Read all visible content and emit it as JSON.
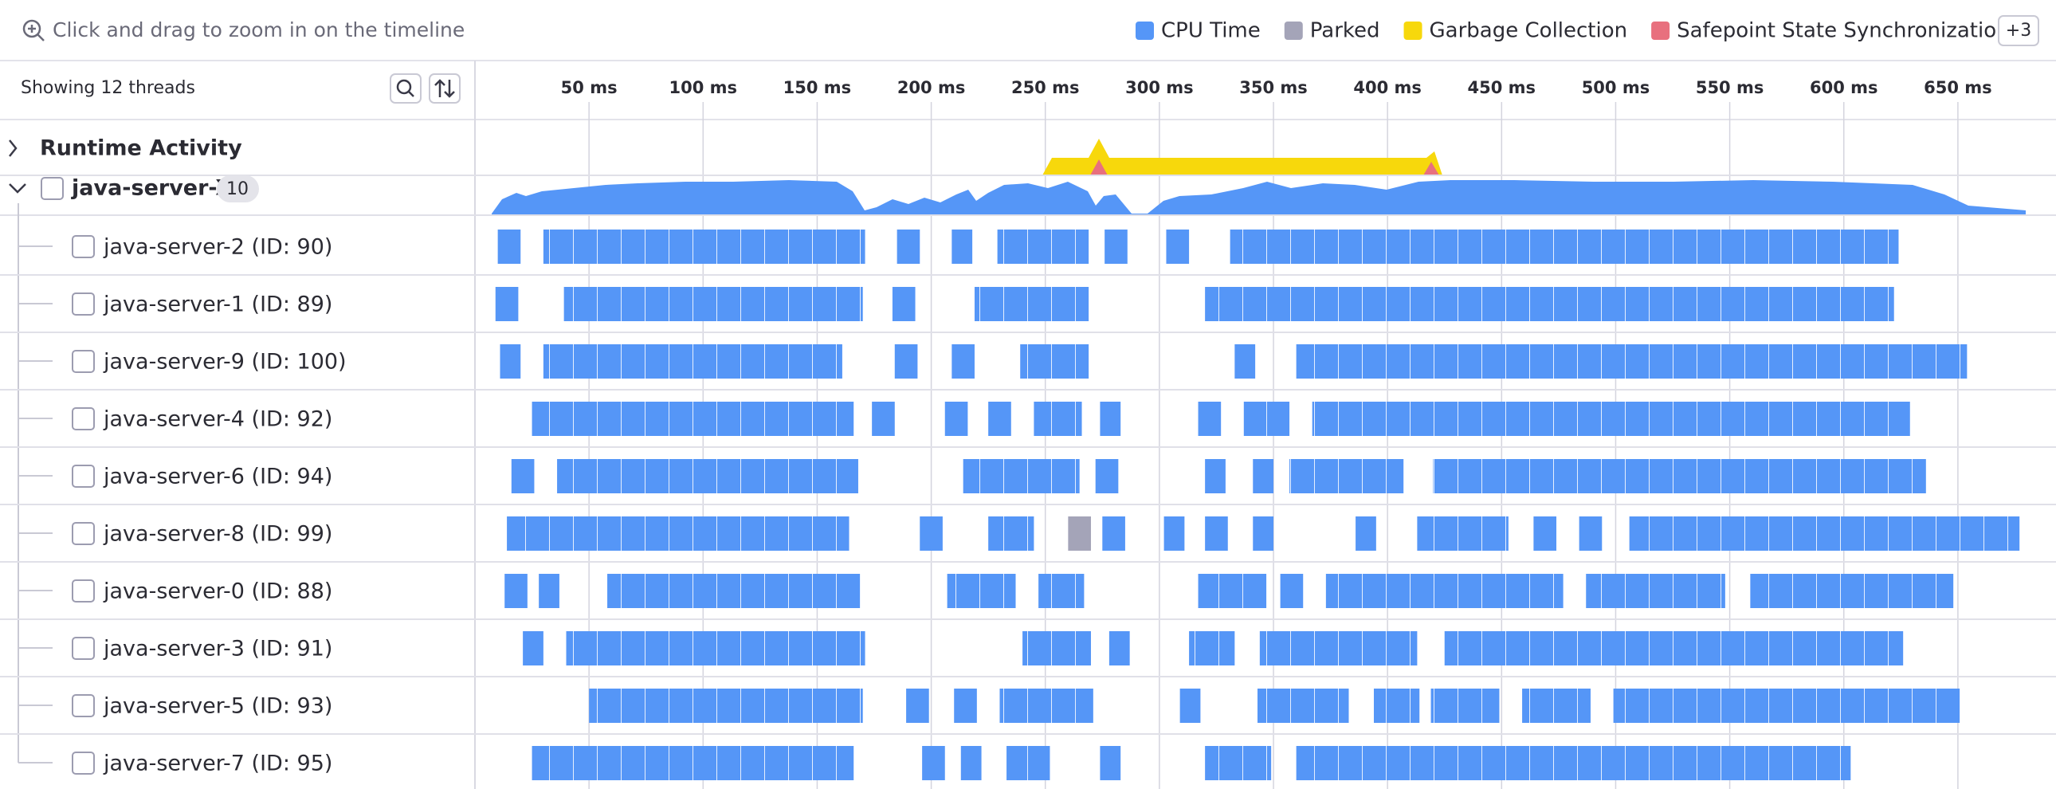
{
  "toolbar": {
    "hint": "Click and drag to zoom in on the timeline",
    "legend": [
      {
        "name": "CPU Time",
        "color": "#5596f7"
      },
      {
        "name": "Parked",
        "color": "#a4a4b8"
      },
      {
        "name": "Garbage Collection",
        "color": "#f7d80c"
      },
      {
        "name": "Safepoint State Synchronization",
        "color": "#e8707e"
      }
    ],
    "more": "+3"
  },
  "header": {
    "thread_count": "Showing 12 threads"
  },
  "timeline": {
    "xlim": [
      0,
      693
    ],
    "ticks": [
      {
        "value": 50,
        "label": "50 ms"
      },
      {
        "value": 100,
        "label": "100 ms"
      },
      {
        "value": 150,
        "label": "150 ms"
      },
      {
        "value": 200,
        "label": "200 ms"
      },
      {
        "value": 250,
        "label": "250 ms"
      },
      {
        "value": 300,
        "label": "300 ms"
      },
      {
        "value": 350,
        "label": "350 ms"
      },
      {
        "value": 400,
        "label": "400 ms"
      },
      {
        "value": 450,
        "label": "450 ms"
      },
      {
        "value": 500,
        "label": "500 ms"
      },
      {
        "value": 550,
        "label": "550 ms"
      },
      {
        "value": 600,
        "label": "600 ms"
      },
      {
        "value": 650,
        "label": "650 ms"
      }
    ]
  },
  "runtime_activity": {
    "label": "Runtime Activity"
  },
  "group": {
    "name": "java-server-X",
    "count": "10"
  },
  "threads": [
    {
      "name": "java-server-2 (ID: 90)",
      "cpu": [
        [
          10,
          20
        ],
        [
          30,
          171
        ],
        [
          185,
          195
        ],
        [
          209,
          218
        ],
        [
          229,
          269
        ],
        [
          276,
          286
        ],
        [
          303,
          313
        ],
        [
          331,
          624
        ]
      ]
    },
    {
      "name": "java-server-1 (ID: 89)",
      "cpu": [
        [
          9,
          19
        ],
        [
          39,
          170
        ],
        [
          183,
          193
        ],
        [
          219,
          269
        ],
        [
          320,
          622
        ]
      ]
    },
    {
      "name": "java-server-9 (ID: 100)",
      "cpu": [
        [
          11,
          20
        ],
        [
          30,
          161
        ],
        [
          184,
          194
        ],
        [
          209,
          219
        ],
        [
          239,
          269
        ],
        [
          333,
          342
        ],
        [
          360,
          654
        ]
      ]
    },
    {
      "name": "java-server-4 (ID: 92)",
      "cpu": [
        [
          25,
          166
        ],
        [
          174,
          184
        ],
        [
          206,
          216
        ],
        [
          225,
          235
        ],
        [
          245,
          266
        ],
        [
          274,
          283
        ],
        [
          317,
          327
        ],
        [
          337,
          357
        ],
        [
          367,
          629
        ]
      ]
    },
    {
      "name": "java-server-6 (ID: 94)",
      "cpu": [
        [
          16,
          26
        ],
        [
          36,
          168
        ],
        [
          214,
          265
        ],
        [
          272,
          282
        ],
        [
          320,
          329
        ],
        [
          341,
          350
        ],
        [
          357,
          407
        ],
        [
          420,
          636
        ]
      ]
    },
    {
      "name": "java-server-8 (ID: 99)",
      "cpu": [
        [
          14,
          164
        ],
        [
          195,
          205
        ],
        [
          225,
          245
        ],
        [
          275,
          285
        ],
        [
          302,
          311
        ],
        [
          320,
          330
        ],
        [
          341,
          350
        ],
        [
          386,
          395
        ],
        [
          413,
          453
        ],
        [
          464,
          474
        ],
        [
          484,
          494
        ],
        [
          506,
          677
        ]
      ],
      "parked": [
        [
          260,
          270
        ]
      ]
    },
    {
      "name": "java-server-0 (ID: 88)",
      "cpu": [
        [
          13,
          23
        ],
        [
          28,
          37
        ],
        [
          58,
          169
        ],
        [
          207,
          237
        ],
        [
          247,
          267
        ],
        [
          317,
          347
        ],
        [
          353,
          363
        ],
        [
          373,
          477
        ],
        [
          487,
          548
        ],
        [
          559,
          648
        ]
      ]
    },
    {
      "name": "java-server-3 (ID: 91)",
      "cpu": [
        [
          21,
          30
        ],
        [
          40,
          171
        ],
        [
          240,
          270
        ],
        [
          278,
          287
        ],
        [
          313,
          333
        ],
        [
          344,
          413
        ],
        [
          425,
          626
        ]
      ]
    },
    {
      "name": "java-server-5 (ID: 93)",
      "cpu": [
        [
          50,
          170
        ],
        [
          189,
          199
        ],
        [
          210,
          220
        ],
        [
          230,
          271
        ],
        [
          309,
          318
        ],
        [
          343,
          383
        ],
        [
          394,
          414
        ],
        [
          419,
          449
        ],
        [
          459,
          489
        ],
        [
          499,
          651
        ]
      ]
    },
    {
      "name": "java-server-7 (ID: 95)",
      "cpu": [
        [
          25,
          166
        ],
        [
          196,
          206
        ],
        [
          213,
          222
        ],
        [
          233,
          252
        ],
        [
          274,
          283
        ],
        [
          320,
          349
        ],
        [
          360,
          603
        ]
      ]
    }
  ]
}
